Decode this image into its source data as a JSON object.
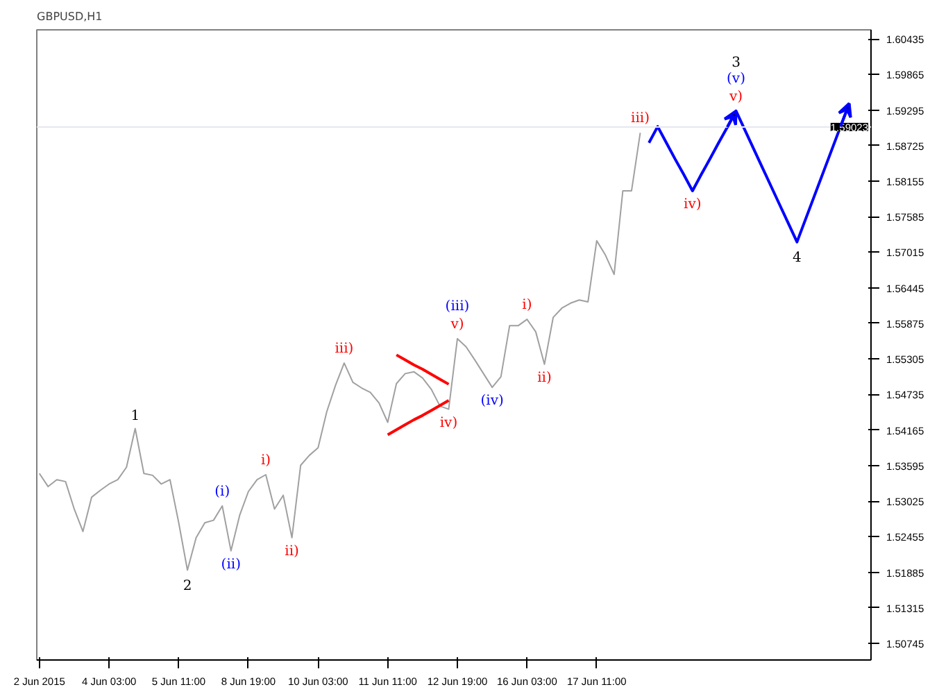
{
  "chart_data": {
    "type": "line",
    "title": "GBPUSD,H1",
    "categories": [
      "2 Jun 2015",
      null,
      null,
      null,
      null,
      null,
      null,
      null,
      "4 Jun 03:00",
      null,
      null,
      null,
      null,
      null,
      null,
      null,
      "5 Jun 11:00",
      null,
      null,
      null,
      null,
      null,
      null,
      null,
      "8 Jun 19:00",
      null,
      null,
      null,
      null,
      null,
      null,
      null,
      "10 Jun 03:00",
      null,
      null,
      null,
      null,
      null,
      null,
      null,
      "11 Jun 11:00",
      null,
      null,
      null,
      null,
      null,
      null,
      null,
      "12 Jun 19:00",
      null,
      null,
      null,
      null,
      null,
      null,
      null,
      "16 Jun 03:00",
      null,
      null,
      null,
      null,
      null,
      null,
      null,
      "17 Jun 11:00",
      null,
      null,
      null,
      null,
      null,
      null,
      null,
      null,
      null,
      null,
      null,
      null,
      null,
      null,
      null,
      null,
      null,
      null,
      null,
      null,
      null,
      null,
      null,
      null,
      null,
      null,
      null,
      null,
      null,
      null,
      null
    ],
    "ylim": [
      1.5048,
      1.6058
    ],
    "yticks": [
      {
        "value": 1.60435,
        "label": "1.60435"
      },
      {
        "value": 1.59865,
        "label": "1.59865"
      },
      {
        "value": 1.59295,
        "label": "1.59295"
      },
      {
        "value": 1.58725,
        "label": "1.58725"
      },
      {
        "value": 1.58155,
        "label": "1.58155"
      },
      {
        "value": 1.57585,
        "label": "1.57585"
      },
      {
        "value": 1.57015,
        "label": "1.57015"
      },
      {
        "value": 1.56445,
        "label": "1.56445"
      },
      {
        "value": 1.55875,
        "label": "1.55875"
      },
      {
        "value": 1.55305,
        "label": "1.55305"
      },
      {
        "value": 1.54735,
        "label": "1.54735"
      },
      {
        "value": 1.54165,
        "label": "1.54165"
      },
      {
        "value": 1.53595,
        "label": "1.53595"
      },
      {
        "value": 1.53025,
        "label": "1.53025"
      },
      {
        "value": 1.52455,
        "label": "1.52455"
      },
      {
        "value": 1.51885,
        "label": "1.51885"
      },
      {
        "value": 1.51315,
        "label": "1.51315"
      },
      {
        "value": 1.50745,
        "label": "1.50745"
      }
    ],
    "grid": false,
    "marker": "none",
    "line_style": "solid",
    "series": [
      {
        "color": "#a0a0a0",
        "values": [
          1.5347,
          1.5326,
          1.5337,
          1.5334,
          1.529,
          1.5254,
          1.5309,
          1.532,
          1.533,
          1.5337,
          1.5357,
          1.5419,
          1.5347,
          1.5344,
          1.533,
          1.5337,
          1.5268,
          1.5192,
          1.5244,
          1.5268,
          1.5272,
          1.5295,
          1.5223,
          1.528,
          1.5318,
          1.5337,
          1.5345,
          1.529,
          1.5312,
          1.5244,
          1.536,
          1.5376,
          1.5388,
          1.5446,
          1.5488,
          1.5524,
          1.5493,
          1.5484,
          1.5477,
          1.546,
          1.5429,
          1.5491,
          1.5507,
          1.551,
          1.55,
          1.5482,
          1.5455,
          1.545,
          1.5563,
          1.555,
          1.5529,
          1.5507,
          1.5485,
          1.5502,
          1.5584,
          1.5584,
          1.5594,
          1.5574,
          1.5522,
          1.5597,
          1.5612,
          1.562,
          1.5625,
          1.5622,
          1.572,
          1.5697,
          1.5666,
          1.58,
          1.58,
          1.5893,
          null,
          null,
          null,
          null,
          null,
          null,
          null,
          null,
          null,
          null,
          null,
          null,
          null,
          null,
          null,
          null,
          null,
          null,
          null,
          null,
          null,
          null,
          null,
          null,
          null,
          null
        ]
      },
      {
        "color": "#0000ff",
        "values": [
          null,
          null,
          null,
          null,
          null,
          null,
          null,
          null,
          null,
          null,
          null,
          null,
          null,
          null,
          null,
          null,
          null,
          null,
          null,
          null,
          null,
          null,
          null,
          null,
          null,
          null,
          null,
          null,
          null,
          null,
          null,
          null,
          null,
          null,
          null,
          null,
          null,
          null,
          null,
          null,
          null,
          null,
          null,
          null,
          null,
          null,
          null,
          null,
          null,
          null,
          null,
          null,
          null,
          null,
          null,
          null,
          null,
          null,
          null,
          null,
          null,
          null,
          null,
          null,
          null,
          null,
          null,
          null,
          null,
          null,
          1.5877,
          1.5903,
          1.5877,
          1.5851,
          1.5826,
          1.58,
          1.5826,
          1.5851,
          1.5877,
          1.5902,
          1.5928,
          1.5898,
          1.5868,
          1.5838,
          1.5808,
          1.5778,
          1.5748,
          1.5718,
          1.5755,
          1.5792,
          1.5829,
          1.5866,
          1.5903,
          1.594,
          null,
          null
        ]
      },
      {
        "color": "#ff0000",
        "values": [
          null,
          null,
          null,
          null,
          null,
          null,
          null,
          null,
          null,
          null,
          null,
          null,
          null,
          null,
          null,
          null,
          null,
          null,
          null,
          null,
          null,
          null,
          null,
          null,
          null,
          null,
          null,
          null,
          null,
          null,
          null,
          null,
          null,
          null,
          null,
          null,
          null,
          null,
          null,
          null,
          null,
          1.5537,
          1.5529,
          1.5521,
          1.5514,
          1.5506,
          1.5498,
          1.549,
          null,
          null,
          null,
          null,
          null,
          null,
          null,
          null,
          null,
          null,
          null,
          null,
          null,
          null,
          null,
          null,
          null,
          null,
          null,
          null,
          null,
          null,
          null,
          null,
          null,
          null,
          null,
          null,
          null,
          null,
          null,
          null,
          null,
          null,
          null,
          null,
          null,
          null,
          null,
          null,
          null,
          null,
          null,
          null,
          null,
          null,
          null,
          null
        ]
      },
      {
        "color": "#ff0000",
        "values": [
          null,
          null,
          null,
          null,
          null,
          null,
          null,
          null,
          null,
          null,
          null,
          null,
          null,
          null,
          null,
          null,
          null,
          null,
          null,
          null,
          null,
          null,
          null,
          null,
          null,
          null,
          null,
          null,
          null,
          null,
          null,
          null,
          null,
          null,
          null,
          null,
          null,
          null,
          null,
          null,
          1.5409,
          1.5417,
          1.5425,
          1.5433,
          1.544,
          1.5448,
          1.5456,
          1.5464,
          null,
          null,
          null,
          null,
          null,
          null,
          null,
          null,
          null,
          null,
          null,
          null,
          null,
          null,
          null,
          null,
          null,
          null,
          null,
          null,
          null,
          null,
          null,
          null,
          null,
          null,
          null,
          null,
          null,
          null,
          null,
          null,
          null,
          null,
          null,
          null,
          null,
          null,
          null,
          null,
          null,
          null,
          null,
          null,
          null,
          null,
          null,
          null
        ]
      }
    ],
    "ref_lines": [
      {
        "axis": "y",
        "value": 1.59023,
        "label": "1.59023",
        "color": "#e6e6f0"
      }
    ],
    "annotations": [
      {
        "text": "1",
        "y": 1.5419
      },
      {
        "text": "2",
        "y": 1.5192
      },
      {
        "text": "(i)",
        "y": 1.5295
      },
      {
        "text": "(ii)",
        "y": 1.5223
      },
      {
        "text": "i)",
        "y": 1.5345
      },
      {
        "text": "ii)",
        "y": 1.5244
      },
      {
        "text": "iii)",
        "y": 1.5524
      },
      {
        "text": "iv)",
        "y": 1.545
      },
      {
        "text": "(iii)",
        "y": 1.5563
      },
      {
        "text": "v)",
        "y": 1.5563
      },
      {
        "text": "(iv)",
        "y": 1.5485
      },
      {
        "text": "i)",
        "y": 1.5594
      },
      {
        "text": "ii)",
        "y": 1.5522
      },
      {
        "text": "iii)",
        "y": 1.5893
      },
      {
        "text": "iv)",
        "y": 1.58
      },
      {
        "text": "3",
        "y": 1.5928
      },
      {
        "text": "(v)",
        "y": 1.5928
      },
      {
        "text": "v)",
        "y": 1.5928
      },
      {
        "text": "4",
        "y": 1.5718
      }
    ]
  }
}
